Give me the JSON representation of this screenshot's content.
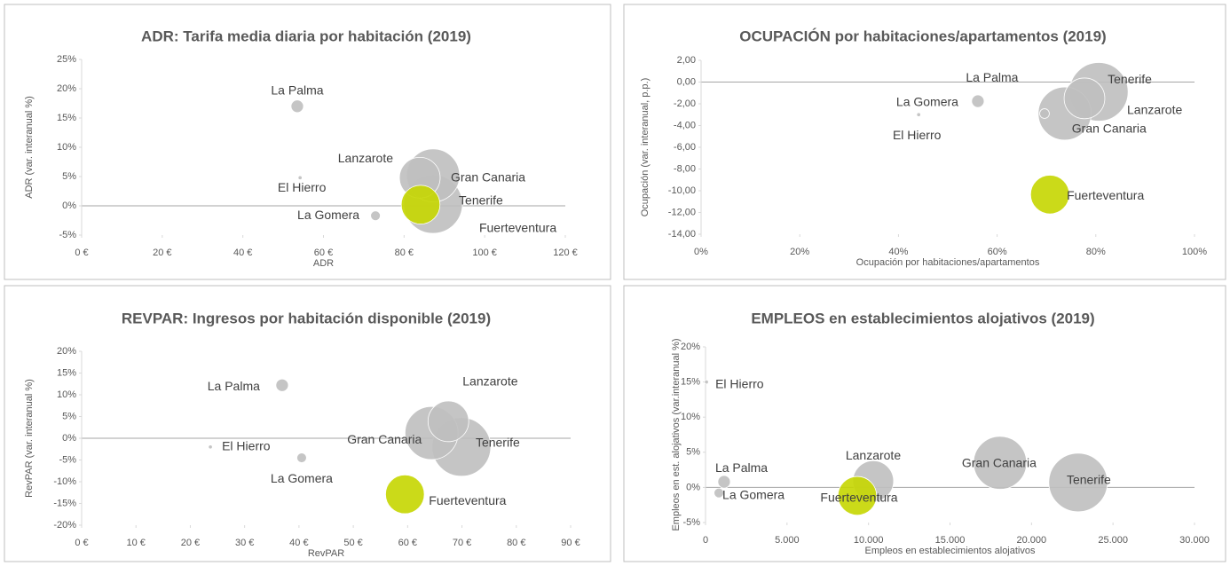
{
  "chart_data": [
    {
      "type": "bubble",
      "title": "ADR: Tarifa media diaria por habitación (2019)",
      "x_label": "ADR",
      "y_label": "ADR (var. interanual %)",
      "labels": [
        "La Palma",
        "El Hierro",
        "La Gomera",
        "Lanzarote",
        "Gran Canaria",
        "Tenerife",
        "Fuerteventura"
      ],
      "x": [
        53.5,
        54.2,
        72.9,
        83.9,
        87.2,
        87.2,
        84.1
      ],
      "values": [
        17,
        4.8,
        -1.7,
        4.8,
        5.2,
        0.3,
        0.2
      ],
      "sizes": [
        5,
        0.5,
        3,
        53,
        90,
        110,
        48
      ],
      "colors": [
        "#bfbfbf",
        "#bfbfbf",
        "#bfbfbf",
        "#bfbfbf",
        "#bfbfbf",
        "#bfbfbf",
        "#c5d600"
      ],
      "xlim": [
        0,
        120
      ],
      "xticks": [
        {
          "value": 0,
          "label": "0 €"
        },
        {
          "value": 20,
          "label": "20 €"
        },
        {
          "value": 40,
          "label": "40 €"
        },
        {
          "value": 60,
          "label": "60 €"
        },
        {
          "value": 80,
          "label": "80 €"
        },
        {
          "value": 100,
          "label": "100 €"
        },
        {
          "value": 120,
          "label": "120 €"
        }
      ],
      "ylim": [
        -5,
        25
      ],
      "yticks": [
        {
          "value": -5,
          "label": "-5%"
        },
        {
          "value": 0,
          "label": "0%"
        },
        {
          "value": 5,
          "label": "5%"
        },
        {
          "value": 10,
          "label": "10%"
        },
        {
          "value": 15,
          "label": "15%"
        },
        {
          "value": 20,
          "label": "20%"
        },
        {
          "value": 25,
          "label": "25%"
        }
      ]
    },
    {
      "type": "bubble",
      "title": "OCUPACIÓN por habitaciones/apartamentos (2019)",
      "x_label": "Ocupación por habitaciones/apartamentos",
      "y_label": "Ocupación (var. interanual, p.p.)",
      "labels": [
        "La Palma",
        "El Hierro",
        "La Gomera",
        "Lanzarote",
        "Gran Canaria",
        "Tenerife",
        "Fuerteventura"
      ],
      "x": [
        56.1,
        44.1,
        69.6,
        77.7,
        73.7,
        80.6,
        70.7
      ],
      "values": [
        -1.76,
        -3.0,
        -2.9,
        -1.5,
        -2.9,
        -0.9,
        -10.35
      ],
      "sizes": [
        5,
        0.5,
        3,
        53,
        90,
        110,
        48
      ],
      "colors": [
        "#bfbfbf",
        "#bfbfbf",
        "#bfbfbf",
        "#bfbfbf",
        "#bfbfbf",
        "#bfbfbf",
        "#c5d600"
      ],
      "xlim": [
        0,
        100
      ],
      "xticks": [
        {
          "value": 0,
          "label": "0%"
        },
        {
          "value": 20,
          "label": "20%"
        },
        {
          "value": 40,
          "label": "40%"
        },
        {
          "value": 60,
          "label": "60%"
        },
        {
          "value": 80,
          "label": "80%"
        },
        {
          "value": 100,
          "label": "100%"
        }
      ],
      "ylim": [
        -14,
        2
      ],
      "yticks": [
        {
          "value": -14,
          "label": "-14,00"
        },
        {
          "value": -12,
          "label": "-12,00"
        },
        {
          "value": -10,
          "label": "-10,00"
        },
        {
          "value": -8,
          "label": "-8,00"
        },
        {
          "value": -6,
          "label": "-6,00"
        },
        {
          "value": -4,
          "label": "-4,00"
        },
        {
          "value": -2,
          "label": "-2,00"
        },
        {
          "value": 0,
          "label": "0,00"
        },
        {
          "value": 2,
          "label": "2,00"
        }
      ]
    },
    {
      "type": "bubble",
      "title": "REVPAR: Ingresos por habitación disponible (2019)",
      "x_label": "RevPAR",
      "y_label": "RevPAR (var. interanual %)",
      "labels": [
        "La Palma",
        "El Hierro",
        "La Gomera",
        "Lanzarote",
        "Gran Canaria",
        "Tenerife",
        "Fuerteventura"
      ],
      "x": [
        36.9,
        23.7,
        40.5,
        67.5,
        64.4,
        69.9,
        59.5
      ],
      "values": [
        12.2,
        -2.0,
        -4.5,
        3.9,
        1.2,
        -2.0,
        -12.9
      ],
      "sizes": [
        5,
        0.5,
        3,
        53,
        90,
        110,
        48
      ],
      "colors": [
        "#bfbfbf",
        "#bfbfbf",
        "#bfbfbf",
        "#bfbfbf",
        "#bfbfbf",
        "#bfbfbf",
        "#c5d600"
      ],
      "xlim": [
        0,
        90
      ],
      "xticks": [
        {
          "value": 0,
          "label": "0 €"
        },
        {
          "value": 10,
          "label": "10 €"
        },
        {
          "value": 20,
          "label": "20 €"
        },
        {
          "value": 30,
          "label": "30 €"
        },
        {
          "value": 40,
          "label": "40 €"
        },
        {
          "value": 50,
          "label": "50 €"
        },
        {
          "value": 60,
          "label": "60 €"
        },
        {
          "value": 70,
          "label": "70 €"
        },
        {
          "value": 80,
          "label": "80 €"
        },
        {
          "value": 90,
          "label": "90 €"
        }
      ],
      "ylim": [
        -20,
        20
      ],
      "yticks": [
        {
          "value": -20,
          "label": "-20%"
        },
        {
          "value": -15,
          "label": "-15%"
        },
        {
          "value": -10,
          "label": "-10%"
        },
        {
          "value": -5,
          "label": "-5%"
        },
        {
          "value": 0,
          "label": "0%"
        },
        {
          "value": 5,
          "label": "5%"
        },
        {
          "value": 10,
          "label": "10%"
        },
        {
          "value": 15,
          "label": "15%"
        },
        {
          "value": 20,
          "label": "20%"
        }
      ]
    },
    {
      "type": "bubble",
      "title": "EMPLEOS en establecimientos alojativos (2019)",
      "x_label": "Empleos en establecimientos alojativos",
      "y_label": "Empleos en est. alojativos (var.interanual %)",
      "labels": [
        "La Palma",
        "El Hierro",
        "La Gomera",
        "Lanzarote",
        "Gran Canaria",
        "Tenerife",
        "Fuerteventura"
      ],
      "x": [
        1140,
        60,
        820,
        10290,
        18070,
        22860,
        9310
      ],
      "values": [
        0.8,
        15,
        -0.8,
        0.9,
        3.5,
        0.7,
        -1.2
      ],
      "sizes": [
        5,
        0.5,
        3,
        53,
        90,
        110,
        48
      ],
      "colors": [
        "#bfbfbf",
        "#bfbfbf",
        "#bfbfbf",
        "#bfbfbf",
        "#bfbfbf",
        "#bfbfbf",
        "#c5d600"
      ],
      "xlim": [
        0,
        30000
      ],
      "xticks": [
        0,
        {
          "value": 5000,
          "label": "5.000"
        },
        {
          "value": 10000,
          "label": "10.000"
        },
        {
          "value": 15000,
          "label": "15.000"
        },
        {
          "value": 20000,
          "label": "20.000"
        },
        {
          "value": 25000,
          "label": "25.000"
        },
        {
          "value": 30000,
          "label": "30.000"
        }
      ],
      "ylim": [
        -5,
        20
      ],
      "yticks": [
        {
          "value": -5,
          "label": "-5%"
        },
        {
          "value": 0,
          "label": "0%"
        },
        {
          "value": 5,
          "label": "5%"
        },
        {
          "value": 10,
          "label": "10%"
        },
        {
          "value": 15,
          "label": "15%"
        },
        {
          "value": 20,
          "label": "20%"
        }
      ]
    }
  ]
}
